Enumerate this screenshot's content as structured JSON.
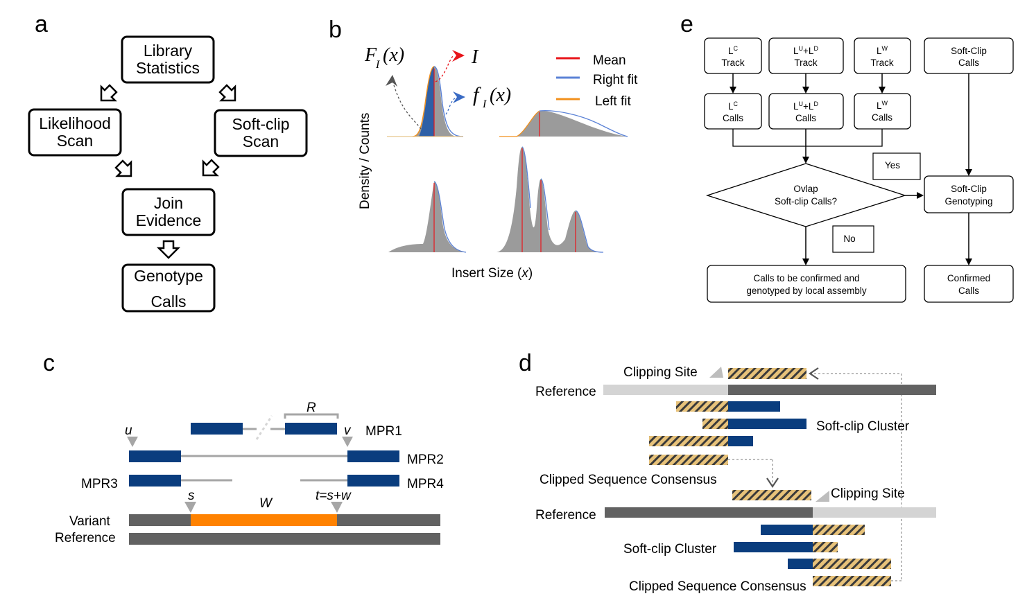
{
  "panels": {
    "a": {
      "label": "a",
      "boxes": [
        {
          "line1": "Library",
          "line2": "Statistics"
        },
        {
          "line1": "Likelihood",
          "line2": "Scan"
        },
        {
          "line1": "Soft-clip",
          "line2": "Scan"
        },
        {
          "line1": "Join",
          "line2": "Evidence"
        },
        {
          "line1": "Genotype",
          "line2": "Calls"
        }
      ]
    },
    "b": {
      "label": "b",
      "cdf_base": "F",
      "pdf_base": "f",
      "subscript": "I",
      "arg": "(x)",
      "insert_symbol": "I",
      "legend": [
        "Mean",
        "Right fit",
        "Left fit"
      ],
      "legend_colors": [
        "#e8141a",
        "#5b82d6",
        "#f2901c"
      ],
      "ylabel": "Density / Counts",
      "xlabel_main": "Insert Size (",
      "xlabel_var": "x",
      "xlabel_end": ")"
    },
    "c": {
      "label": "c",
      "R": "R",
      "u": "u",
      "v": "v",
      "s": "s",
      "W": "W",
      "t": "t=s+w",
      "reads": [
        "MPR1",
        "MPR2",
        "MPR3",
        "MPR4"
      ],
      "variant": "Variant",
      "reference": "Reference",
      "colors": {
        "read": "#0a3d7e",
        "variant": "#ff8200",
        "track": "#626262"
      }
    },
    "d": {
      "label": "d",
      "clipping_site_top": "Clipping Site",
      "reference_top": "Reference",
      "softclip_cluster_top": "Soft-clip Cluster",
      "consensus_top": "Clipped Sequence Consensus",
      "clipping_site_bottom": "Clipping Site",
      "reference_bottom": "Reference",
      "softclip_cluster_bottom": "Soft-clip Cluster",
      "consensus_bottom": "Clipped Sequence Consensus"
    },
    "e": {
      "label": "e",
      "track_boxes": [
        {
          "sup": "C",
          "name": "Track"
        },
        {
          "sup": "U",
          "sup2": "D",
          "name": "Track"
        },
        {
          "sup": "W",
          "name": "Track"
        }
      ],
      "call_boxes": [
        {
          "sup": "C",
          "name": "Calls"
        },
        {
          "sup": "U",
          "sup2": "D",
          "name": "Calls"
        },
        {
          "sup": "W",
          "name": "Calls"
        }
      ],
      "softclip_calls": [
        "Soft-Clip",
        "Calls"
      ],
      "diamond": [
        "Ovlap",
        "Soft-clip Calls?"
      ],
      "yes": "Yes",
      "no": "No",
      "genotyping": [
        "Soft-Clip",
        "Genotyping"
      ],
      "local_assembly": [
        "Calls to be confirmed and",
        "genotyped by local assembly"
      ],
      "confirmed": [
        "Confirmed",
        "Calls"
      ]
    }
  }
}
